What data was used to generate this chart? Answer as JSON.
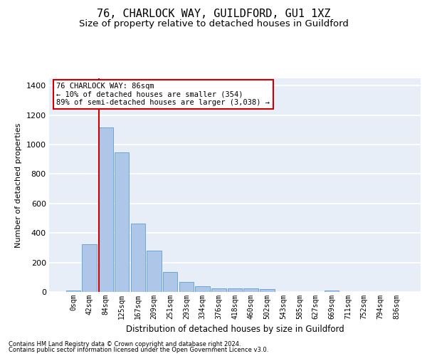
{
  "title1": "76, CHARLOCK WAY, GUILDFORD, GU1 1XZ",
  "title2": "Size of property relative to detached houses in Guildford",
  "xlabel": "Distribution of detached houses by size in Guildford",
  "ylabel": "Number of detached properties",
  "footnote1": "Contains HM Land Registry data © Crown copyright and database right 2024.",
  "footnote2": "Contains public sector information licensed under the Open Government Licence v3.0.",
  "bar_labels": [
    "0sqm",
    "42sqm",
    "84sqm",
    "125sqm",
    "167sqm",
    "209sqm",
    "251sqm",
    "293sqm",
    "334sqm",
    "376sqm",
    "418sqm",
    "460sqm",
    "502sqm",
    "543sqm",
    "585sqm",
    "627sqm",
    "669sqm",
    "711sqm",
    "752sqm",
    "794sqm",
    "836sqm"
  ],
  "bar_values": [
    10,
    325,
    1115,
    945,
    465,
    278,
    133,
    70,
    40,
    22,
    25,
    25,
    18,
    2,
    0,
    0,
    12,
    0,
    0,
    0,
    0
  ],
  "bar_color": "#aec6e8",
  "bar_edge_color": "#5a9fd4",
  "highlight_color": "#cc0000",
  "annotation_line1": "76 CHARLOCK WAY: 86sqm",
  "annotation_line2": "← 10% of detached houses are smaller (354)",
  "annotation_line3": "89% of semi-detached houses are larger (3,038) →",
  "annotation_box_color": "#cc0000",
  "annotation_bg_color": "#ffffff",
  "ylim": [
    0,
    1450
  ],
  "yticks": [
    0,
    200,
    400,
    600,
    800,
    1000,
    1200,
    1400
  ],
  "bg_color": "#e8eef8",
  "grid_color": "#ffffff",
  "title1_fontsize": 11,
  "title2_fontsize": 9.5
}
